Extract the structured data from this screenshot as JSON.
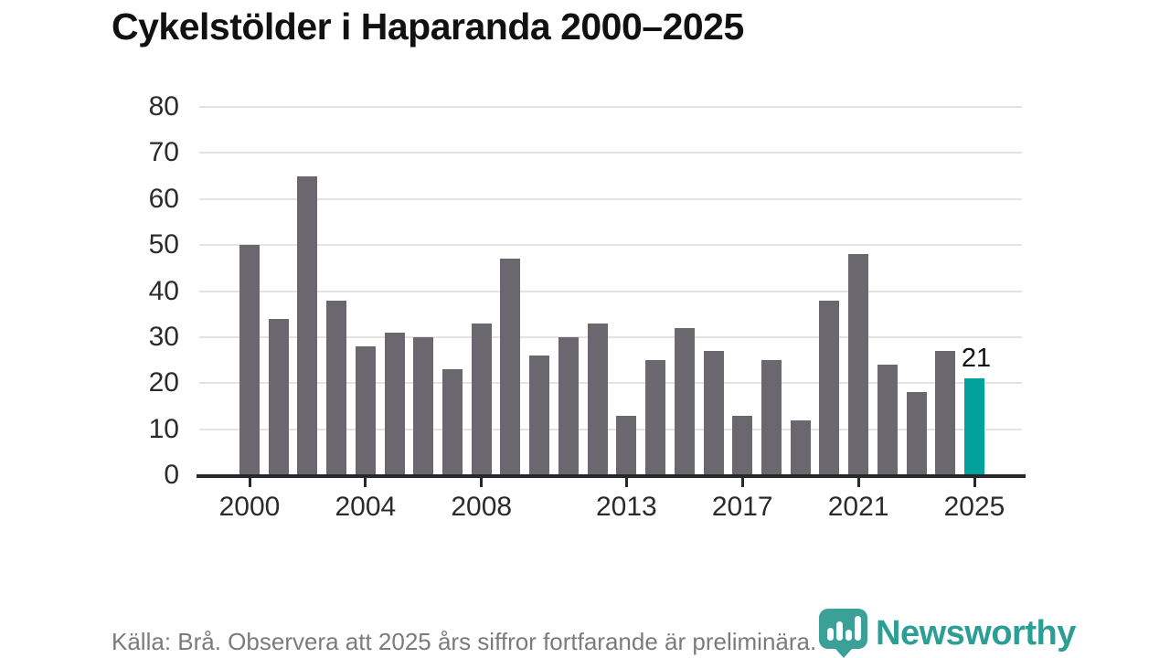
{
  "chart": {
    "title": "Cykelstölder i Haparanda 2000–2025",
    "source_note": "Källa: Brå. Observera att 2025 års siffror fortfarande är preliminära."
  },
  "branding": {
    "logo_icon": "newsworthy-pin-barchart-icon",
    "logo_text": "Newsworthy"
  },
  "colors": {
    "bar": "#6b676e",
    "highlight": "#00a29b",
    "grid": "#e3e3e3",
    "axis": "#27292b",
    "title": "#111111",
    "tick_label": "#2b2b2b",
    "footer": "#7b7b7b",
    "brand": "#2b9e96",
    "brand_pin": "#3aa098"
  },
  "chart_data": {
    "type": "bar",
    "title": "Cykelstölder i Haparanda 2000–2025",
    "x": [
      2000,
      2001,
      2002,
      2003,
      2004,
      2005,
      2006,
      2007,
      2008,
      2009,
      2010,
      2011,
      2012,
      2013,
      2014,
      2015,
      2016,
      2017,
      2018,
      2019,
      2020,
      2021,
      2022,
      2023,
      2024,
      2025
    ],
    "values": [
      50,
      34,
      65,
      38,
      28,
      31,
      30,
      23,
      33,
      47,
      26,
      30,
      33,
      13,
      25,
      32,
      27,
      13,
      25,
      12,
      38,
      48,
      24,
      18,
      27,
      21
    ],
    "highlight_x": 2025,
    "annotations": [
      {
        "x": 2025,
        "text": "21"
      }
    ],
    "x_tick_labels": [
      "2000",
      "2004",
      "2008",
      "2013",
      "2017",
      "2021",
      "2025"
    ],
    "y_ticks": [
      0,
      10,
      20,
      30,
      40,
      50,
      60,
      70,
      80
    ],
    "ylim": [
      0,
      80
    ],
    "xlabel": "",
    "ylabel": "",
    "grid": "horizontal",
    "legend": "none"
  }
}
